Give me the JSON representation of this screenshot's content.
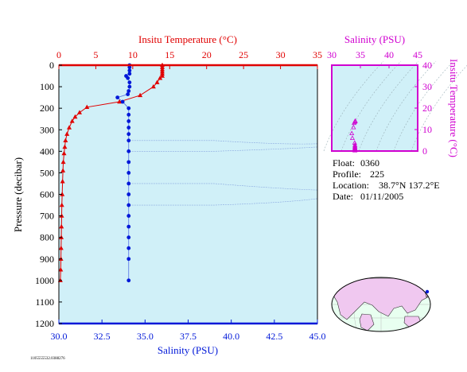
{
  "colors": {
    "temperature": "#e00000",
    "salinity": "#0018d8",
    "magenta": "#d000d0",
    "plot_bg": "#d0f0f8",
    "land": "#f0c8f0",
    "ocean": "#e8fff0"
  },
  "chart_data": [
    {
      "type": "line",
      "title": "",
      "top_xlabel": "Insitu Temperature (°C)",
      "bottom_xlabel": "Salinity (PSU)",
      "ylabel": "Pressure (decibar)",
      "temperature_axis": {
        "range": [
          0,
          35
        ],
        "ticks": [
          "0",
          "5",
          "10",
          "15",
          "20",
          "25",
          "30",
          "35"
        ]
      },
      "salinity_axis": {
        "range": [
          30.0,
          45.0
        ],
        "ticks": [
          "30.0",
          "32.5",
          "35.0",
          "37.5",
          "40.0",
          "42.5",
          "45.0"
        ]
      },
      "pressure_axis": {
        "range": [
          0,
          1200
        ],
        "inverted": true,
        "ticks": [
          "0",
          "100",
          "200",
          "300",
          "400",
          "500",
          "600",
          "700",
          "800",
          "900",
          "1000",
          "1100",
          "1200"
        ]
      },
      "series": [
        {
          "name": "Insitu Temperature",
          "axis": "temperature",
          "marker": "triangle",
          "points": [
            [
              14.0,
              0
            ],
            [
              14.0,
              10
            ],
            [
              14.0,
              20
            ],
            [
              14.0,
              30
            ],
            [
              14.0,
              40
            ],
            [
              14.0,
              50
            ],
            [
              13.7,
              60
            ],
            [
              13.3,
              80
            ],
            [
              12.8,
              100
            ],
            [
              11.0,
              140
            ],
            [
              8.2,
              170
            ],
            [
              3.8,
              195
            ],
            [
              2.8,
              220
            ],
            [
              2.2,
              240
            ],
            [
              1.8,
              260
            ],
            [
              1.4,
              290
            ],
            [
              1.1,
              320
            ],
            [
              0.9,
              350
            ],
            [
              0.8,
              380
            ],
            [
              0.7,
              410
            ],
            [
              0.6,
              450
            ],
            [
              0.55,
              490
            ],
            [
              0.5,
              540
            ],
            [
              0.45,
              600
            ],
            [
              0.4,
              650
            ],
            [
              0.38,
              700
            ],
            [
              0.35,
              750
            ],
            [
              0.33,
              800
            ],
            [
              0.3,
              850
            ],
            [
              0.28,
              900
            ],
            [
              0.25,
              950
            ],
            [
              0.2,
              1000
            ]
          ]
        },
        {
          "name": "Salinity",
          "axis": "salinity",
          "marker": "circle",
          "points": [
            [
              34.1,
              0
            ],
            [
              34.1,
              10
            ],
            [
              34.1,
              25
            ],
            [
              34.1,
              40
            ],
            [
              34.0,
              60
            ],
            [
              34.1,
              80
            ],
            [
              33.9,
              50
            ],
            [
              34.1,
              100
            ],
            [
              34.05,
              120
            ],
            [
              34.0,
              135
            ],
            [
              33.4,
              150
            ],
            [
              33.7,
              170
            ],
            [
              34.05,
              200
            ],
            [
              34.05,
              230
            ],
            [
              34.05,
              260
            ],
            [
              34.05,
              290
            ],
            [
              34.05,
              320
            ],
            [
              34.05,
              350
            ],
            [
              34.05,
              400
            ],
            [
              34.05,
              450
            ],
            [
              34.05,
              500
            ],
            [
              34.05,
              550
            ],
            [
              34.05,
              600
            ],
            [
              34.05,
              650
            ],
            [
              34.05,
              700
            ],
            [
              34.05,
              750
            ],
            [
              34.05,
              800
            ],
            [
              34.05,
              850
            ],
            [
              34.05,
              900
            ],
            [
              34.05,
              1000
            ]
          ]
        }
      ]
    },
    {
      "type": "scatter",
      "title": "",
      "xlabel": "Salinity (PSU)",
      "ylabel": "Insitu Temperature (°C)",
      "x_range": [
        30,
        45
      ],
      "y_range": [
        0,
        40
      ],
      "xticks": [
        "30",
        "35",
        "40",
        "45"
      ],
      "yticks": [
        "0",
        "10",
        "20",
        "30",
        "40"
      ],
      "points": [
        [
          34.1,
          14.0
        ],
        [
          34.1,
          13.8
        ],
        [
          34.0,
          13.5
        ],
        [
          33.9,
          13.0
        ],
        [
          33.8,
          11.0
        ],
        [
          33.5,
          8.2
        ],
        [
          33.6,
          6.0
        ],
        [
          34.0,
          3.8
        ],
        [
          34.05,
          2.8
        ],
        [
          34.05,
          2.2
        ],
        [
          34.05,
          1.8
        ],
        [
          34.05,
          1.4
        ],
        [
          34.05,
          1.1
        ],
        [
          34.05,
          0.8
        ],
        [
          34.05,
          0.5
        ],
        [
          34.05,
          0.3
        ],
        [
          34.05,
          0.2
        ]
      ]
    }
  ],
  "info": {
    "float_label": "Float:",
    "float_value": "0360",
    "profile_label": "Profile:",
    "profile_value": "225",
    "location_label": "Location:",
    "location_value": "38.7°N  137.2°E",
    "date_label": "Date:",
    "date_value": "01/11/2005"
  },
  "footer_id": "1105555532.0388276"
}
